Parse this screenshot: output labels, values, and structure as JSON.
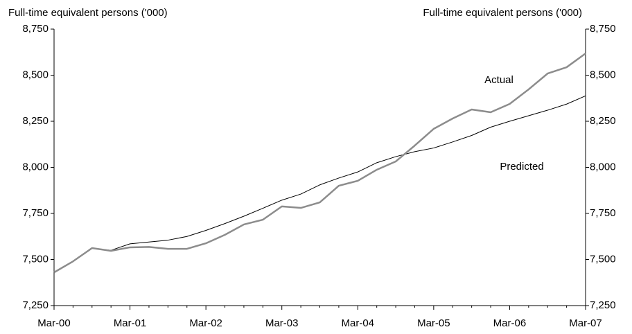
{
  "chart_data": {
    "type": "line",
    "y_label": "Full-time equivalent persons ('000)",
    "y2_label": "Full-time equivalent persons ('000)",
    "categories": [
      "Mar-00",
      null,
      null,
      null,
      "Mar-01",
      null,
      null,
      null,
      "Mar-02",
      null,
      null,
      null,
      "Mar-03",
      null,
      null,
      null,
      "Mar-04",
      null,
      null,
      null,
      "Mar-05",
      null,
      null,
      null,
      "Mar-06",
      null,
      null,
      null,
      "Mar-07"
    ],
    "series": [
      {
        "name": "Actual",
        "color": "#8c8c8c",
        "values": [
          7430,
          7490,
          7562,
          7547,
          7566,
          7568,
          7558,
          7558,
          7588,
          7634,
          7690,
          7716,
          7788,
          7780,
          7810,
          7900,
          7927,
          7987,
          8032,
          8118,
          8209,
          8265,
          8314,
          8299,
          8344,
          8423,
          8509,
          8543,
          8618
        ]
      },
      {
        "name": "Predicted",
        "color": "#000000",
        "values": [
          7432,
          7490,
          7562,
          7550,
          7585,
          7595,
          7605,
          7625,
          7658,
          7695,
          7735,
          7778,
          7822,
          7855,
          7905,
          7942,
          7975,
          8025,
          8058,
          8085,
          8105,
          8138,
          8173,
          8218,
          8250,
          8280,
          8310,
          8343,
          8388
        ]
      }
    ],
    "ylim": [
      7250,
      8750
    ],
    "yticks": [
      {
        "value": 7250,
        "label": "7,250"
      },
      {
        "value": 7500,
        "label": "7,500"
      },
      {
        "value": 7750,
        "label": "7,750"
      },
      {
        "value": 8000,
        "label": "8,000"
      },
      {
        "value": 8250,
        "label": "8,250"
      },
      {
        "value": 8500,
        "label": "8,500"
      },
      {
        "value": 8750,
        "label": "8,750"
      }
    ],
    "y2lim": [
      7250,
      8750
    ],
    "y2ticks": [
      {
        "value": 7250,
        "label": "7,250"
      },
      {
        "value": 7500,
        "label": "7,500"
      },
      {
        "value": 7750,
        "label": "7,750"
      },
      {
        "value": 8000,
        "label": "8,000"
      },
      {
        "value": 8250,
        "label": "8,250"
      },
      {
        "value": 8500,
        "label": "8,500"
      },
      {
        "value": 8750,
        "label": "8,750"
      }
    ],
    "grid": false
  }
}
